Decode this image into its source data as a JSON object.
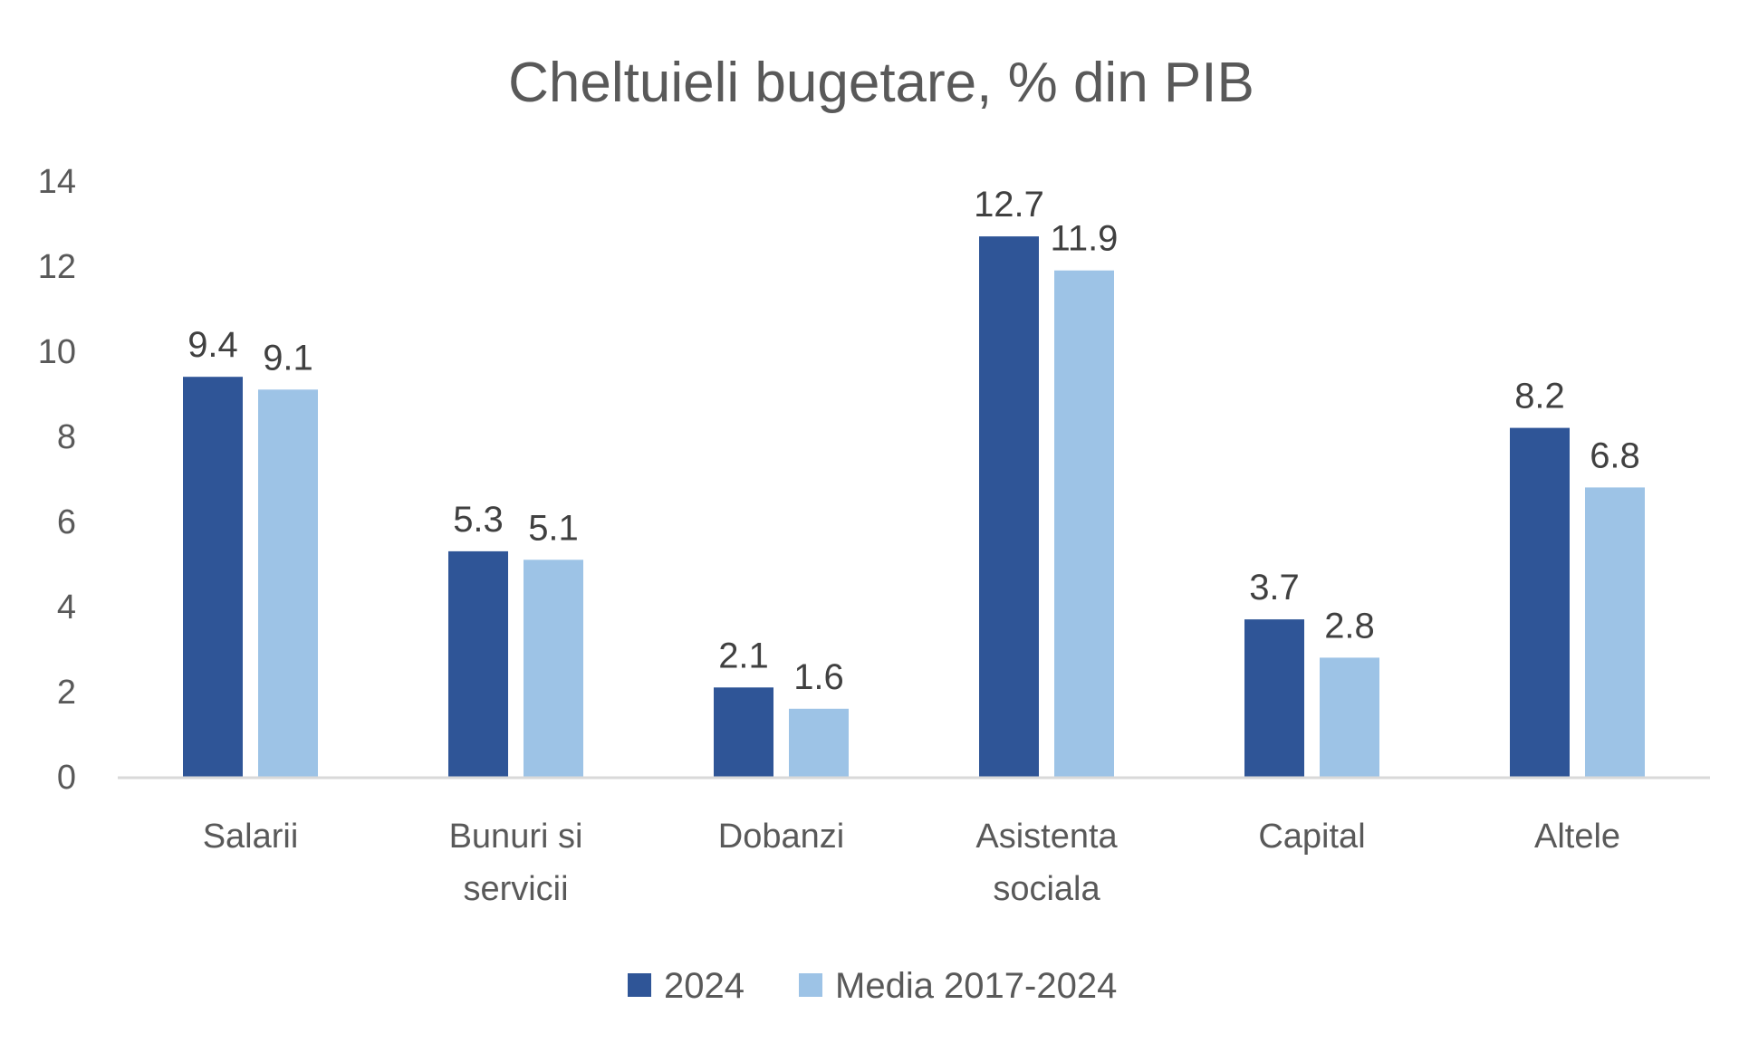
{
  "chart_data": {
    "type": "bar",
    "title": "Cheltuieli bugetare, % din PIB",
    "categories": [
      [
        "Salarii"
      ],
      [
        "Bunuri si",
        "servicii"
      ],
      [
        "Dobanzi"
      ],
      [
        "Asistenta",
        "sociala"
      ],
      [
        "Capital"
      ],
      [
        "Altele"
      ]
    ],
    "series": [
      {
        "name": "2024",
        "color": "#2f5597",
        "values": [
          9.4,
          5.3,
          2.1,
          12.7,
          3.7,
          8.2
        ],
        "labels": [
          "9.4",
          "5.3",
          "2.1",
          "12.7",
          "3.7",
          "8.2"
        ]
      },
      {
        "name": "Media 2017-2024",
        "color": "#9dc3e6",
        "values": [
          9.1,
          5.1,
          1.6,
          11.9,
          2.8,
          6.8
        ],
        "labels": [
          "9.1",
          "5.1",
          "1.6",
          "11.9",
          "2.8",
          "6.8"
        ]
      }
    ],
    "ylim": [
      0,
      14
    ],
    "yticks": [
      "0",
      "2",
      "4",
      "6",
      "8",
      "10",
      "12",
      "14"
    ],
    "grid": false,
    "legend": "bottom",
    "axis_color": "#d9d9d9"
  }
}
